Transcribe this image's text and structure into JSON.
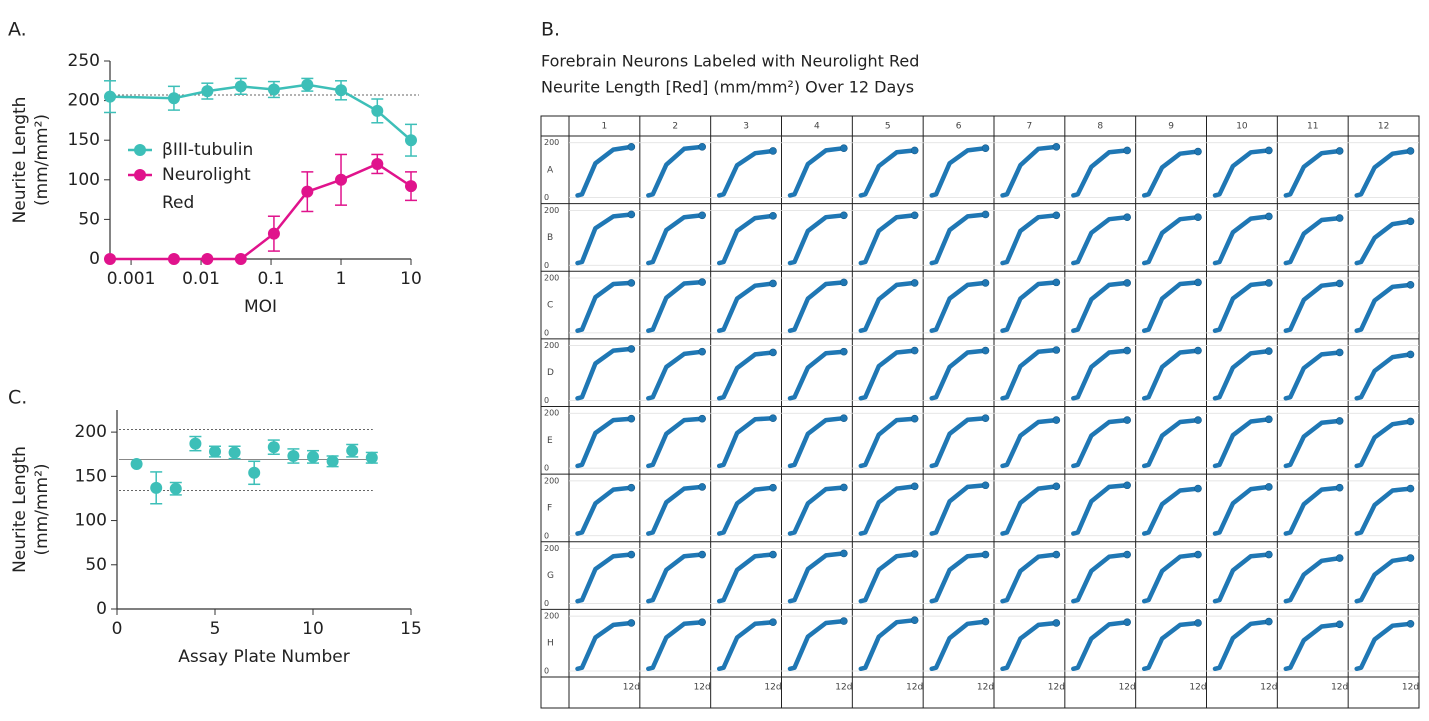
{
  "chart_data": [
    {
      "type": "line",
      "panel": "A.",
      "xlabel": "MOI",
      "ylabel": [
        "Neurite Length",
        "(mm/mm²)"
      ],
      "log_x": true,
      "xlim": [
        0.0005,
        10
      ],
      "xticks": [
        0.001,
        0.01,
        0.1,
        1,
        10
      ],
      "ylim": [
        0,
        250
      ],
      "yticks": [
        0,
        50,
        100,
        150,
        200,
        250
      ],
      "x": [
        0.0005,
        0.0041,
        0.0123,
        0.037,
        0.11,
        0.33,
        1,
        3.3,
        10
      ],
      "reference_lines": [
        207
      ],
      "series": [
        {
          "name": "βIII-tubulin",
          "color": "#3dbfb8",
          "values": [
            205,
            203,
            212,
            218,
            214,
            220,
            213,
            187,
            150
          ],
          "errors": [
            20,
            15,
            10,
            10,
            10,
            8,
            12,
            15,
            20
          ]
        },
        {
          "name": "Neurolight Red",
          "color": "#e0138c",
          "values": [
            0,
            0,
            0,
            0,
            32,
            85,
            100,
            120,
            92
          ],
          "errors": [
            0,
            0,
            0,
            0,
            22,
            25,
            32,
            12,
            18
          ]
        }
      ]
    },
    {
      "type": "plate",
      "panel": "B.",
      "title": [
        "Forebrain Neurons Labeled with Neurolight Red",
        "Neurite Length [Red] (mm/mm²) Over 12 Days"
      ],
      "columns": [
        1,
        2,
        3,
        4,
        5,
        6,
        7,
        8,
        9,
        10,
        11,
        12
      ],
      "rows": [
        "A",
        "B",
        "C",
        "D",
        "E",
        "F",
        "G",
        "H"
      ],
      "x": [
        0,
        1,
        4,
        8,
        12
      ],
      "xlim": [
        -1,
        13
      ],
      "xticks": [
        {
          "value": 12,
          "label": "12d"
        }
      ],
      "ylim": [
        0,
        210
      ],
      "yticks": [
        0,
        200
      ],
      "color": "#1f77b4",
      "wells": [
        [
          [
            8,
            12,
            125,
            175,
            185
          ],
          [
            8,
            12,
            120,
            178,
            185
          ],
          [
            8,
            12,
            118,
            162,
            170
          ],
          [
            8,
            12,
            122,
            172,
            180
          ],
          [
            8,
            12,
            115,
            165,
            172
          ],
          [
            8,
            12,
            125,
            172,
            180
          ],
          [
            8,
            12,
            118,
            178,
            185
          ],
          [
            8,
            12,
            112,
            165,
            172
          ],
          [
            8,
            12,
            110,
            160,
            168
          ],
          [
            8,
            12,
            115,
            165,
            172
          ],
          [
            8,
            12,
            112,
            162,
            170
          ],
          [
            8,
            12,
            110,
            160,
            170
          ]
        ],
        [
          [
            8,
            12,
            135,
            178,
            185
          ],
          [
            8,
            12,
            128,
            175,
            182
          ],
          [
            8,
            12,
            125,
            172,
            180
          ],
          [
            8,
            12,
            125,
            175,
            182
          ],
          [
            8,
            12,
            125,
            175,
            182
          ],
          [
            8,
            12,
            128,
            178,
            185
          ],
          [
            8,
            12,
            125,
            175,
            182
          ],
          [
            8,
            12,
            118,
            168,
            175
          ],
          [
            8,
            12,
            118,
            168,
            175
          ],
          [
            8,
            12,
            120,
            170,
            178
          ],
          [
            8,
            12,
            115,
            165,
            172
          ],
          [
            8,
            12,
            100,
            150,
            160
          ]
        ],
        [
          [
            8,
            12,
            130,
            178,
            182
          ],
          [
            8,
            12,
            128,
            180,
            185
          ],
          [
            8,
            12,
            125,
            172,
            180
          ],
          [
            8,
            12,
            125,
            178,
            184
          ],
          [
            8,
            12,
            122,
            175,
            182
          ],
          [
            8,
            12,
            125,
            175,
            182
          ],
          [
            8,
            12,
            125,
            178,
            184
          ],
          [
            8,
            12,
            122,
            175,
            182
          ],
          [
            8,
            12,
            125,
            178,
            184
          ],
          [
            8,
            12,
            125,
            175,
            182
          ],
          [
            8,
            12,
            120,
            172,
            180
          ],
          [
            8,
            12,
            118,
            168,
            175
          ]
        ],
        [
          [
            8,
            12,
            135,
            182,
            188
          ],
          [
            8,
            12,
            122,
            170,
            178
          ],
          [
            8,
            12,
            118,
            168,
            175
          ],
          [
            8,
            12,
            120,
            172,
            178
          ],
          [
            8,
            12,
            125,
            175,
            182
          ],
          [
            8,
            12,
            122,
            175,
            182
          ],
          [
            8,
            12,
            125,
            178,
            184
          ],
          [
            8,
            12,
            122,
            175,
            182
          ],
          [
            8,
            12,
            122,
            175,
            182
          ],
          [
            8,
            12,
            120,
            172,
            180
          ],
          [
            8,
            12,
            118,
            168,
            175
          ],
          [
            8,
            12,
            108,
            158,
            168
          ]
        ],
        [
          [
            8,
            12,
            128,
            175,
            180
          ],
          [
            8,
            12,
            125,
            175,
            180
          ],
          [
            8,
            12,
            128,
            178,
            182
          ],
          [
            8,
            12,
            125,
            175,
            182
          ],
          [
            8,
            12,
            122,
            175,
            180
          ],
          [
            8,
            12,
            125,
            176,
            182
          ],
          [
            8,
            12,
            118,
            168,
            175
          ],
          [
            8,
            12,
            118,
            168,
            175
          ],
          [
            8,
            12,
            118,
            168,
            175
          ],
          [
            8,
            12,
            120,
            170,
            178
          ],
          [
            8,
            12,
            115,
            165,
            172
          ],
          [
            8,
            12,
            112,
            160,
            170
          ]
        ],
        [
          [
            8,
            12,
            118,
            168,
            175
          ],
          [
            8,
            12,
            122,
            172,
            178
          ],
          [
            8,
            12,
            118,
            168,
            175
          ],
          [
            8,
            12,
            118,
            170,
            176
          ],
          [
            8,
            12,
            122,
            172,
            180
          ],
          [
            8,
            12,
            125,
            178,
            184
          ],
          [
            8,
            12,
            120,
            172,
            180
          ],
          [
            8,
            12,
            125,
            178,
            184
          ],
          [
            8,
            12,
            115,
            165,
            172
          ],
          [
            8,
            12,
            118,
            170,
            178
          ],
          [
            8,
            12,
            115,
            168,
            175
          ],
          [
            8,
            12,
            112,
            165,
            172
          ]
        ],
        [
          [
            8,
            12,
            125,
            172,
            178
          ],
          [
            8,
            12,
            122,
            172,
            178
          ],
          [
            8,
            12,
            122,
            172,
            178
          ],
          [
            8,
            12,
            125,
            175,
            182
          ],
          [
            8,
            12,
            122,
            172,
            180
          ],
          [
            8,
            12,
            122,
            172,
            178
          ],
          [
            8,
            12,
            118,
            170,
            178
          ],
          [
            8,
            12,
            118,
            170,
            178
          ],
          [
            8,
            12,
            118,
            170,
            178
          ],
          [
            8,
            12,
            120,
            172,
            178
          ],
          [
            8,
            12,
            105,
            155,
            165
          ],
          [
            8,
            12,
            105,
            155,
            165
          ]
        ],
        [
          [
            8,
            12,
            122,
            168,
            175
          ],
          [
            8,
            12,
            122,
            172,
            178
          ],
          [
            8,
            12,
            122,
            172,
            178
          ],
          [
            8,
            12,
            125,
            175,
            182
          ],
          [
            8,
            12,
            125,
            178,
            185
          ],
          [
            8,
            12,
            120,
            172,
            180
          ],
          [
            8,
            12,
            118,
            168,
            175
          ],
          [
            8,
            12,
            118,
            170,
            178
          ],
          [
            8,
            12,
            118,
            168,
            175
          ],
          [
            8,
            12,
            120,
            172,
            180
          ],
          [
            8,
            12,
            112,
            162,
            170
          ],
          [
            8,
            12,
            115,
            165,
            172
          ]
        ]
      ]
    },
    {
      "type": "scatter",
      "panel": "C.",
      "xlabel": "Assay Plate Number",
      "ylabel": [
        "Neurite Length",
        "(mm/mm²)"
      ],
      "xlim": [
        0,
        15
      ],
      "xticks": [
        0,
        5,
        10,
        15
      ],
      "ylim": [
        0,
        225
      ],
      "yticks": [
        0,
        50,
        100,
        150,
        200
      ],
      "color": "#3dbfb8",
      "x": [
        1,
        2,
        3,
        4,
        5,
        6,
        7,
        8,
        9,
        10,
        11,
        12,
        13
      ],
      "values": [
        164,
        137,
        136,
        187,
        178,
        177,
        154,
        183,
        173,
        172,
        167,
        179,
        171
      ],
      "errors": [
        0,
        18,
        7,
        8,
        6,
        7,
        13,
        8,
        8,
        7,
        6,
        7,
        6
      ],
      "reference_lines": [
        {
          "value": 169,
          "style": "solid"
        },
        {
          "value": 203,
          "style": "dotted"
        },
        {
          "value": 134,
          "style": "dotted"
        }
      ]
    }
  ]
}
